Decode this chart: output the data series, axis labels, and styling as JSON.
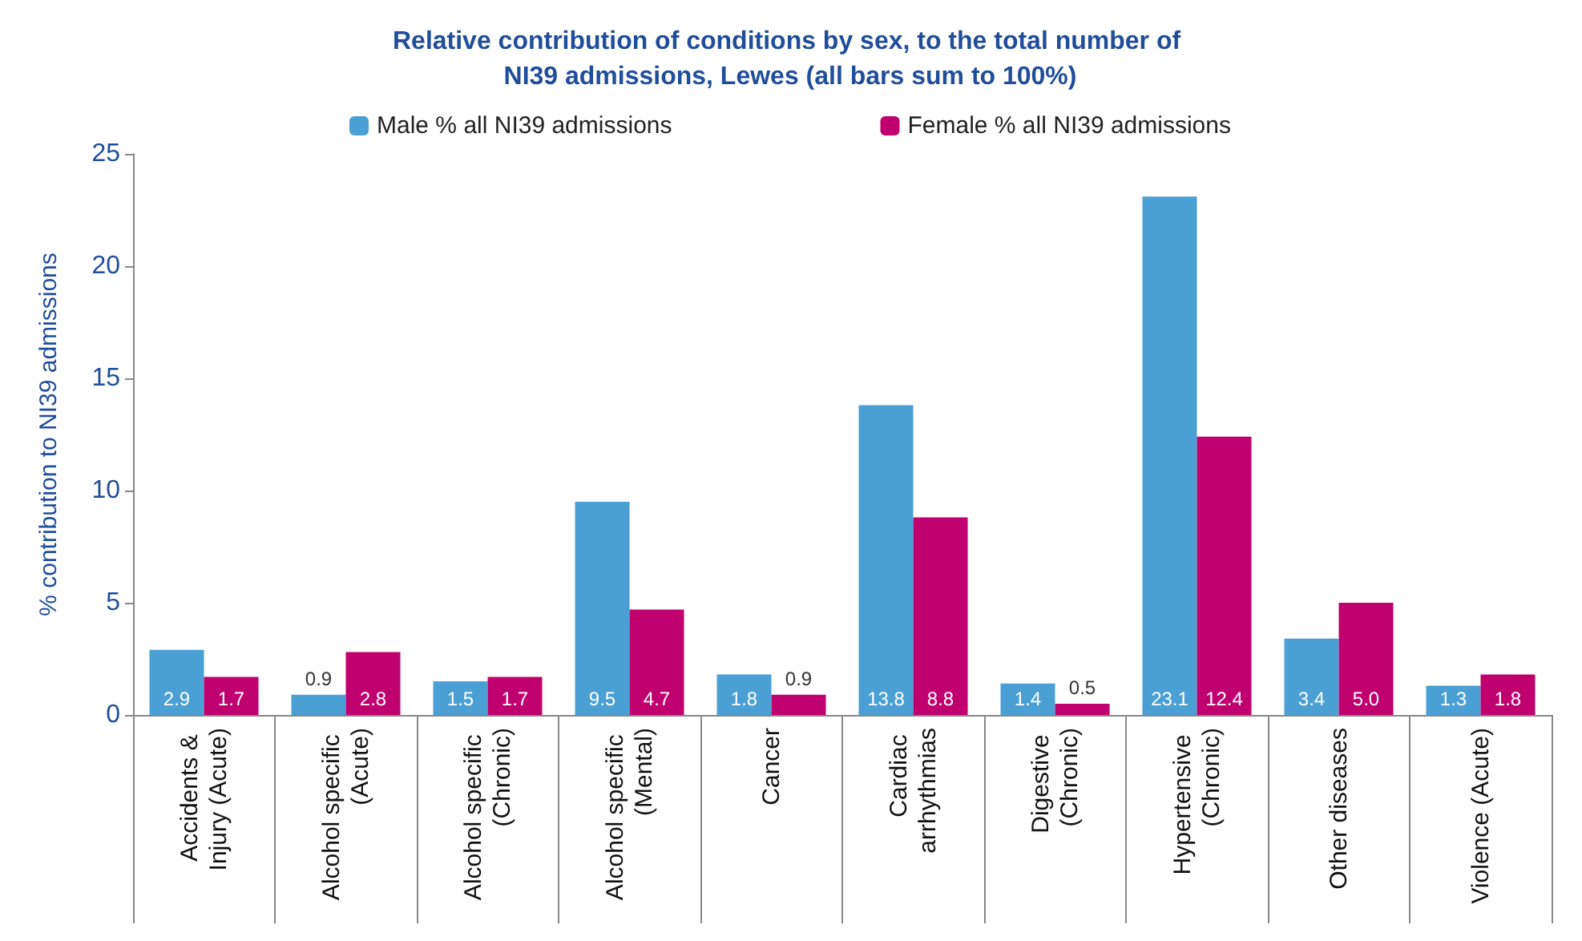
{
  "chart_data": {
    "type": "bar",
    "title": "Relative contribution of conditions by sex, to the total number of NI39 admissions, Lewes (all bars sum to 100%)",
    "ylabel": "% contribution to NI39 admissions",
    "categories": [
      "Accidents & Injury (Acute)",
      "Alcohol specific (Acute)",
      "Alcohol specific (Chronic)",
      "Alcohol specific (Mental)",
      "Cancer",
      "Cardiac arrhythmias",
      "Digestive (Chronic)",
      "Hypertensive (Chronic)",
      "Other diseases",
      "Violence (Acute)"
    ],
    "series": [
      {
        "name": "Male % all NI39 admissions",
        "color": "#4a9fd4",
        "values": [
          2.9,
          0.9,
          1.5,
          9.5,
          1.8,
          13.8,
          1.4,
          23.1,
          3.4,
          1.3
        ],
        "value_labels": [
          "2.9",
          "0.9",
          "1.5",
          "9.5",
          "1.8",
          "13.8",
          "1.4",
          "23.1",
          "3.4",
          "1.3"
        ]
      },
      {
        "name": "Female % all NI39 admissions",
        "color": "#c0006f",
        "values": [
          1.7,
          2.8,
          1.7,
          4.7,
          0.9,
          8.8,
          0.5,
          12.4,
          5.0,
          1.8
        ],
        "value_labels": [
          "1.7",
          "2.8",
          "1.7",
          "4.7",
          "0.9",
          "8.8",
          "0.5",
          "12.4",
          "5.0",
          "1.8"
        ]
      }
    ],
    "ylim": [
      0,
      25
    ],
    "yticks": [
      0,
      5,
      10,
      15,
      20,
      25
    ],
    "grid": false,
    "legend": "top"
  }
}
